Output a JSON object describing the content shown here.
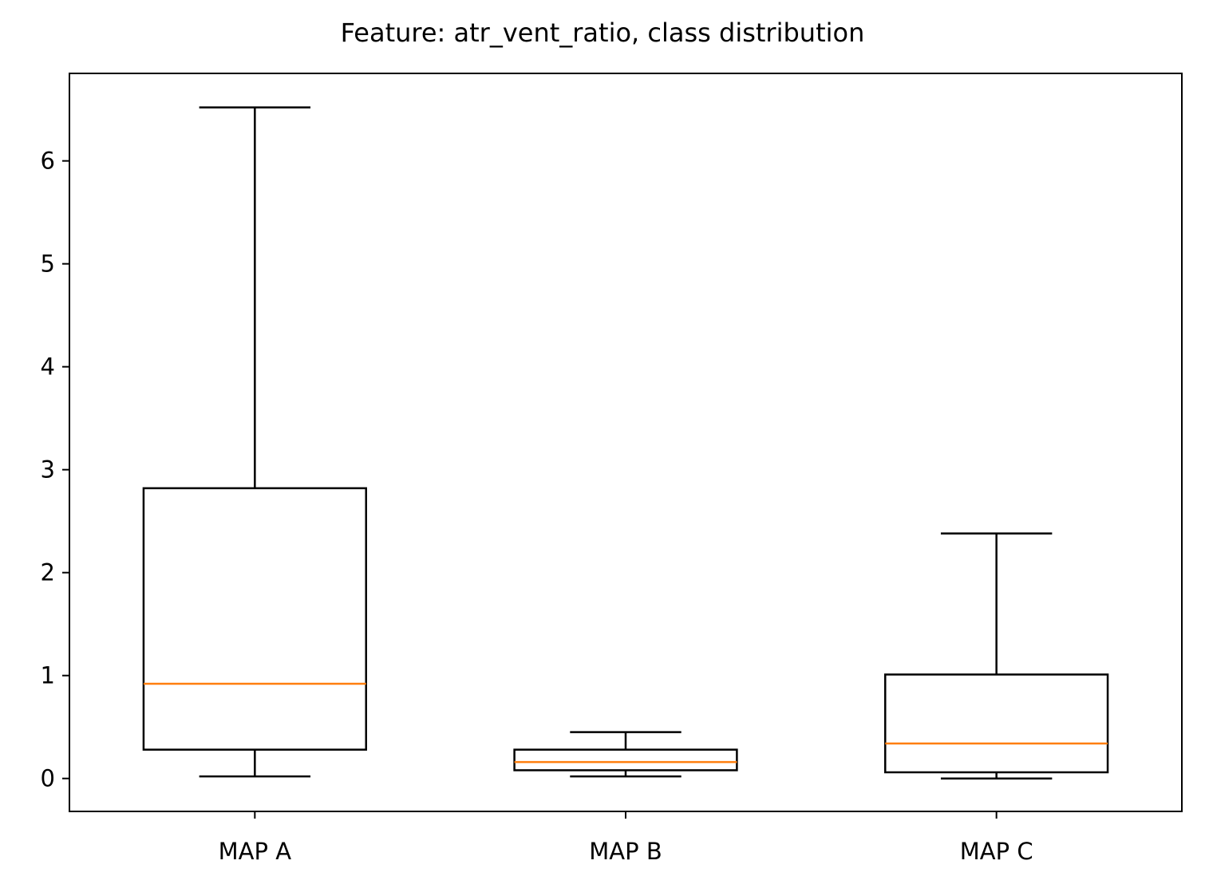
{
  "chart_data": {
    "type": "boxplot",
    "title": "Feature: atr_vent_ratio, class distribution",
    "xlabel": "",
    "ylabel": "",
    "categories": [
      "MAP A",
      "MAP B",
      "MAP C"
    ],
    "boxes": [
      {
        "category": "MAP A",
        "whisker_low": 0.02,
        "q1": 0.28,
        "median": 0.92,
        "q3": 2.82,
        "whisker_high": 6.52
      },
      {
        "category": "MAP B",
        "whisker_low": 0.02,
        "q1": 0.08,
        "median": 0.16,
        "q3": 0.28,
        "whisker_high": 0.45
      },
      {
        "category": "MAP C",
        "whisker_low": 0.0,
        "q1": 0.06,
        "median": 0.34,
        "q3": 1.01,
        "whisker_high": 2.38
      }
    ],
    "ylim": [
      -0.32,
      6.85
    ],
    "yticks": [
      0,
      1,
      2,
      3,
      4,
      5,
      6
    ],
    "grid": false,
    "legend": "none",
    "colors": {
      "box": "#000000",
      "median": "#ff7f0e"
    }
  }
}
